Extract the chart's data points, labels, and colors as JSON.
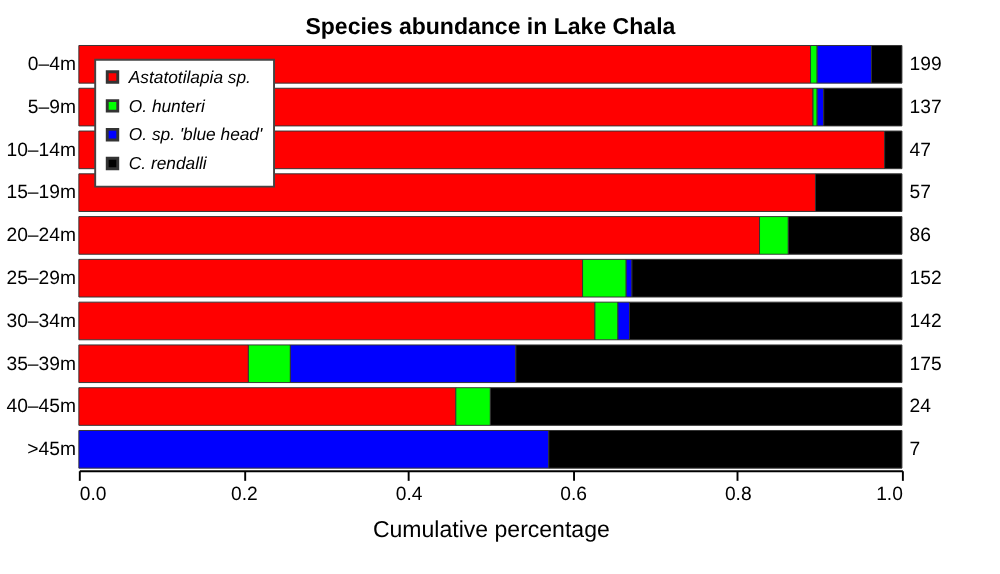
{
  "chart_data": {
    "type": "bar",
    "orientation": "horizontal",
    "stacked": true,
    "title": "Species abundance in Lake Chala",
    "xlabel": "Cumulative percentage",
    "categories": [
      "0–4m",
      "5–9m",
      "10–14m",
      "15–19m",
      "20–24m",
      "25–29m",
      "30–34m",
      "35–39m",
      "40–45m",
      ">45m"
    ],
    "series": [
      {
        "name": "Astatotilapia sp.",
        "color": "#ff0000",
        "values": [
          0.889,
          0.892,
          0.979,
          0.895,
          0.827,
          0.612,
          0.627,
          0.206,
          0.458,
          0
        ]
      },
      {
        "name": "O. hunteri",
        "color": "#00ff00",
        "values": [
          0.008,
          0.005,
          0,
          0,
          0.035,
          0.053,
          0.028,
          0.051,
          0.042,
          0
        ]
      },
      {
        "name": "O. sp. 'blue head'",
        "color": "#0000ff",
        "values": [
          0.066,
          0.008,
          0,
          0,
          0,
          0.007,
          0.014,
          0.274,
          0,
          0.571
        ]
      },
      {
        "name": "C. rendalli",
        "color": "#000000",
        "values": [
          0.037,
          0.095,
          0.021,
          0.105,
          0.138,
          0.328,
          0.331,
          0.469,
          0.5,
          0.429
        ]
      }
    ],
    "xlim": [
      0,
      1
    ],
    "xticks": [
      {
        "value": 0,
        "label": "0.0"
      },
      {
        "value": 0.2,
        "label": "0.2"
      },
      {
        "value": 0.4,
        "label": "0.4"
      },
      {
        "value": 0.6,
        "label": "0.6"
      },
      {
        "value": 0.8,
        "label": "0.8"
      },
      {
        "value": 1,
        "label": "1.0"
      }
    ],
    "grid": false,
    "legend": "top left",
    "annotations": [
      "199",
      "137",
      "47",
      "57",
      "86",
      "152",
      "142",
      "175",
      "24",
      "7"
    ]
  }
}
